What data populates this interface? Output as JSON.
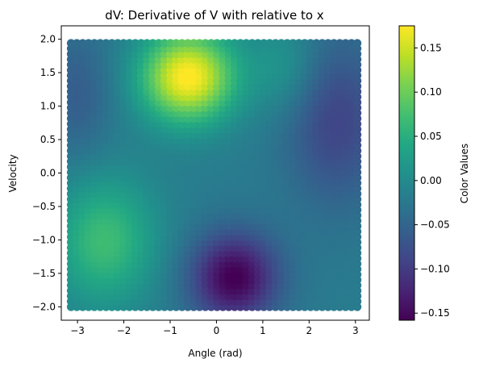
{
  "chart_data": {
    "type": "scatter",
    "title": "dV: Derivative of V with relative to x",
    "xlabel": "Angle (rad)",
    "ylabel": "Velocity",
    "xlim": [
      -3.35,
      3.3
    ],
    "ylim": [
      -2.2,
      2.2
    ],
    "xticks": [
      -3,
      -2,
      -1,
      0,
      1,
      2,
      3
    ],
    "xtick_labels": [
      "−3",
      "−2",
      "−1",
      "0",
      "1",
      "2",
      "3"
    ],
    "yticks": [
      -2.0,
      -1.5,
      -1.0,
      -0.5,
      0.0,
      0.5,
      1.0,
      1.5,
      2.0
    ],
    "ytick_labels": [
      "−2.0",
      "−1.5",
      "−1.0",
      "−0.5",
      "0.0",
      "0.5",
      "1.0",
      "1.5",
      "2.0"
    ],
    "grid": false,
    "colormap": "viridis",
    "colorbar": {
      "label": "Color Values",
      "range": [
        -0.158,
        0.175
      ],
      "ticks": [
        0.15,
        0.1,
        0.05,
        0.0,
        -0.05,
        -0.1,
        -0.15
      ],
      "tick_labels": [
        "0.15",
        "0.10",
        "0.05",
        "0.00",
        "−0.05",
        "−0.10",
        "−0.15"
      ]
    },
    "grid_points": {
      "x_range": [
        -3.14,
        3.04
      ],
      "y_range": [
        -2.0,
        1.94
      ],
      "nx": 50,
      "ny": 50,
      "description": "scatter on a regular grid; color = dV value"
    },
    "value_features": [
      {
        "x": -0.6,
        "y": 1.4,
        "value": 0.175,
        "note": "maximum"
      },
      {
        "x": 0.4,
        "y": -1.5,
        "value": -0.158,
        "note": "minimum"
      },
      {
        "x": -2.5,
        "y": -1.0,
        "value": 0.07
      },
      {
        "x": 2.8,
        "y": 0.6,
        "value": -0.09
      }
    ]
  }
}
